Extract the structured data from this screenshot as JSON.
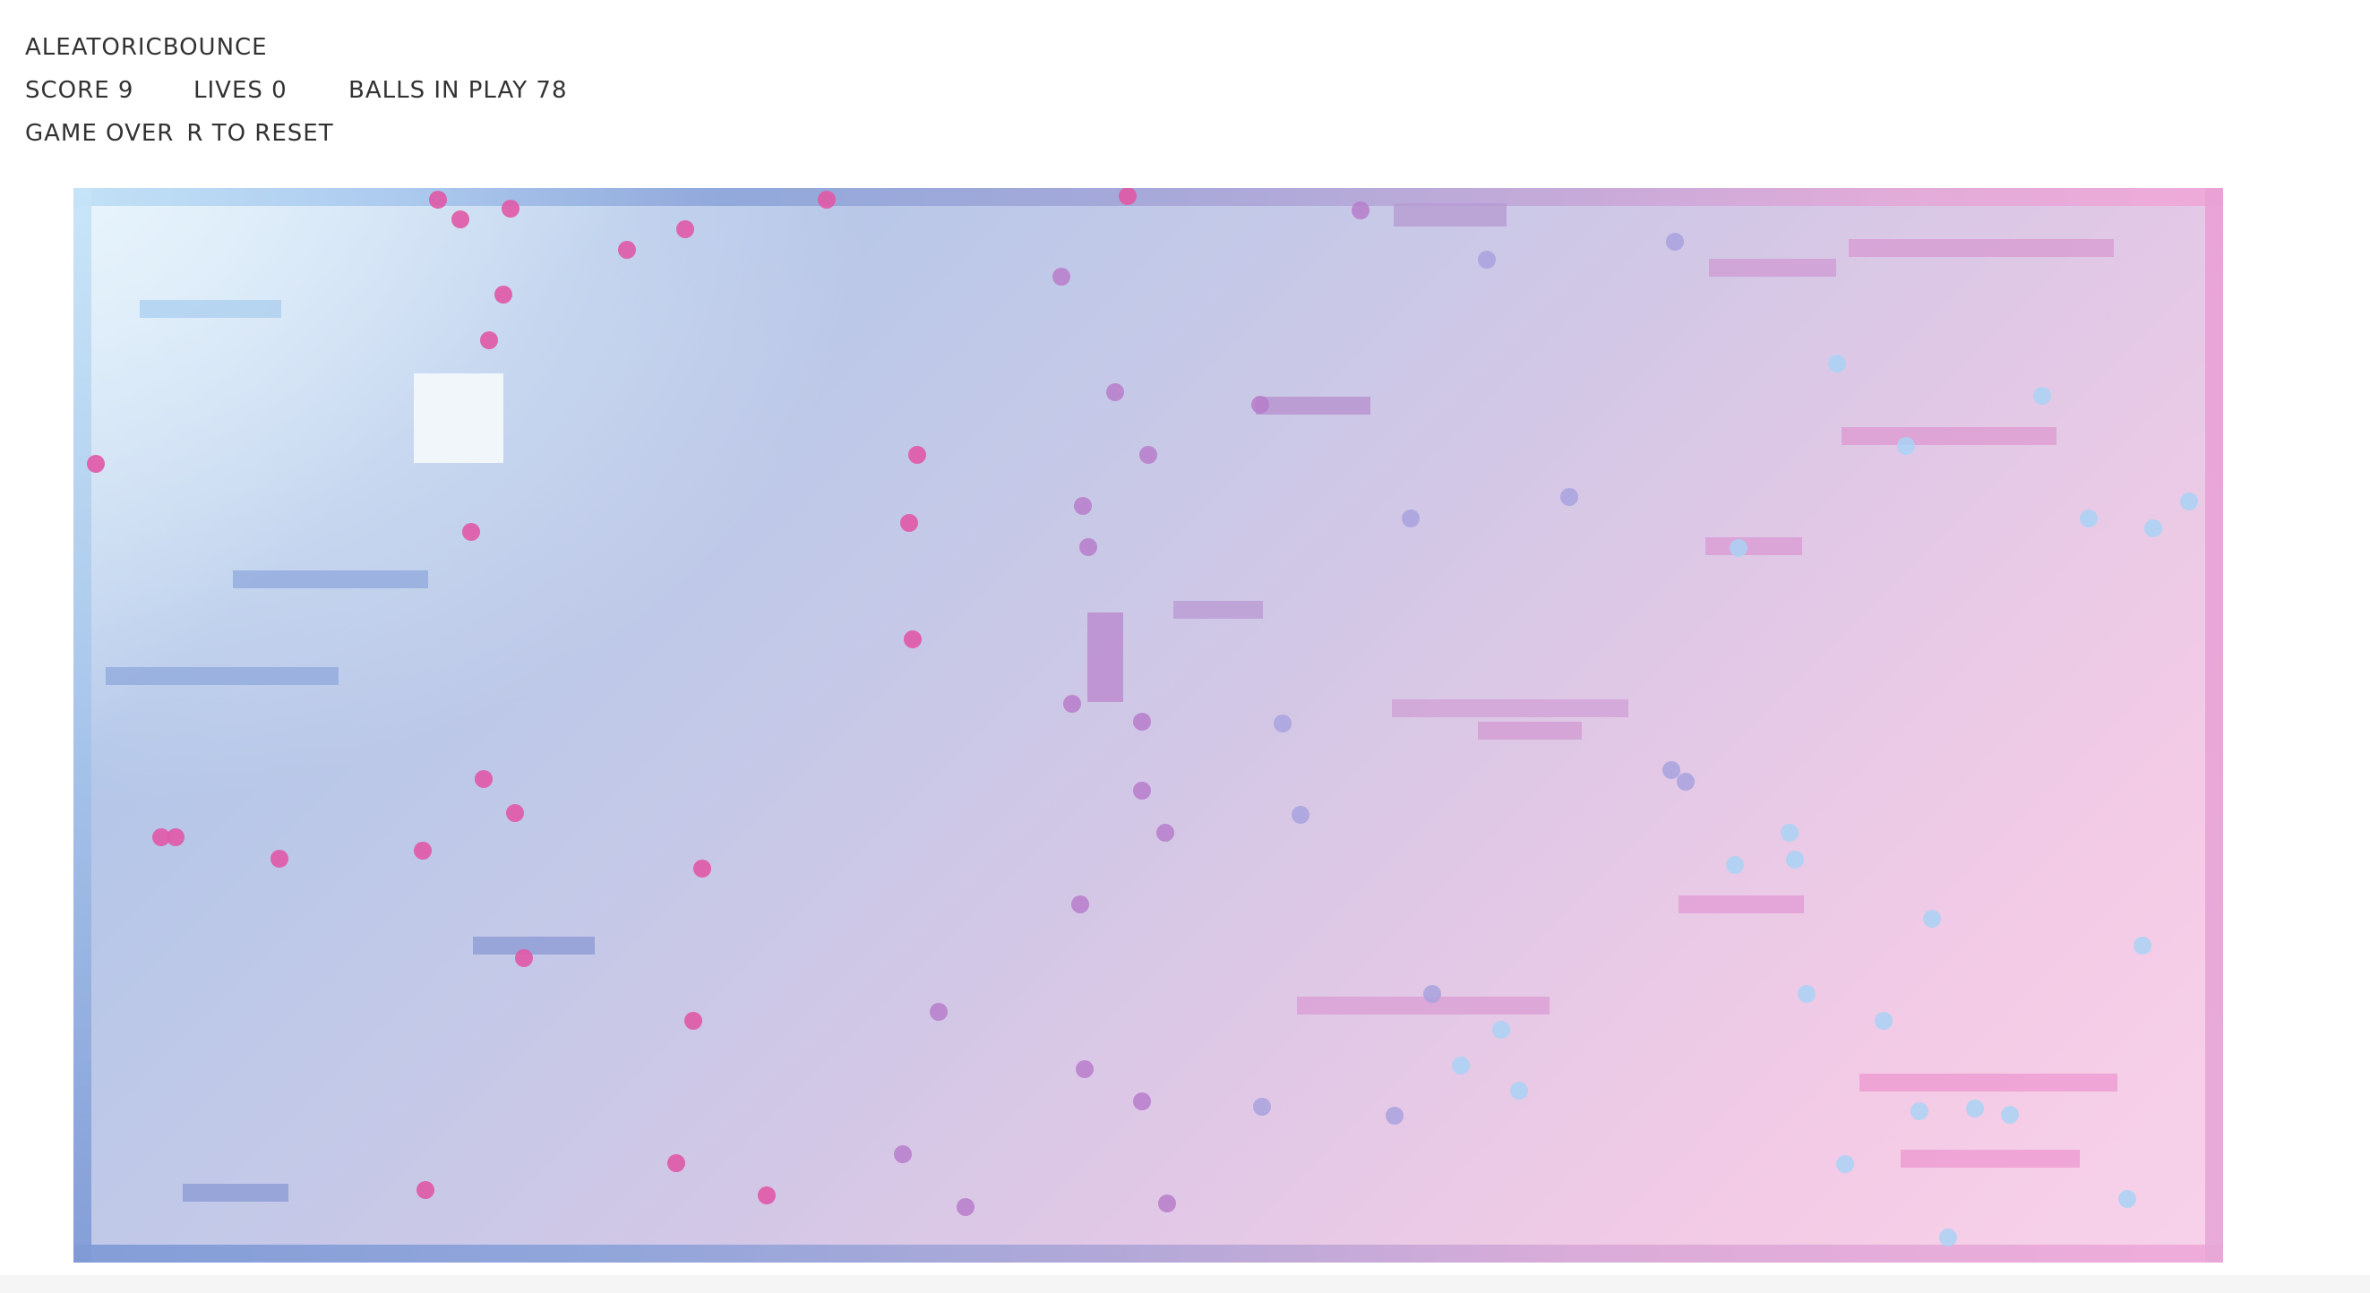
{
  "hud": {
    "title": "ALEATORICBOUNCE",
    "score_label": "SCORE 9",
    "lives_label": "LIVES 0",
    "balls_label": "BALLS IN PLAY 78",
    "game_over": "GAME OVER",
    "reset_hint": "R TO RESET"
  },
  "colors": {
    "cool_end": "#bfe0f6",
    "mid": "#a9a0d6",
    "warm_end": "#f0a8d8",
    "ball_magenta": "#df5aa8",
    "ball_purple": "#b77dca",
    "ball_lavender": "#a9a2de",
    "ball_sky": "#a9d2f4"
  }
}
